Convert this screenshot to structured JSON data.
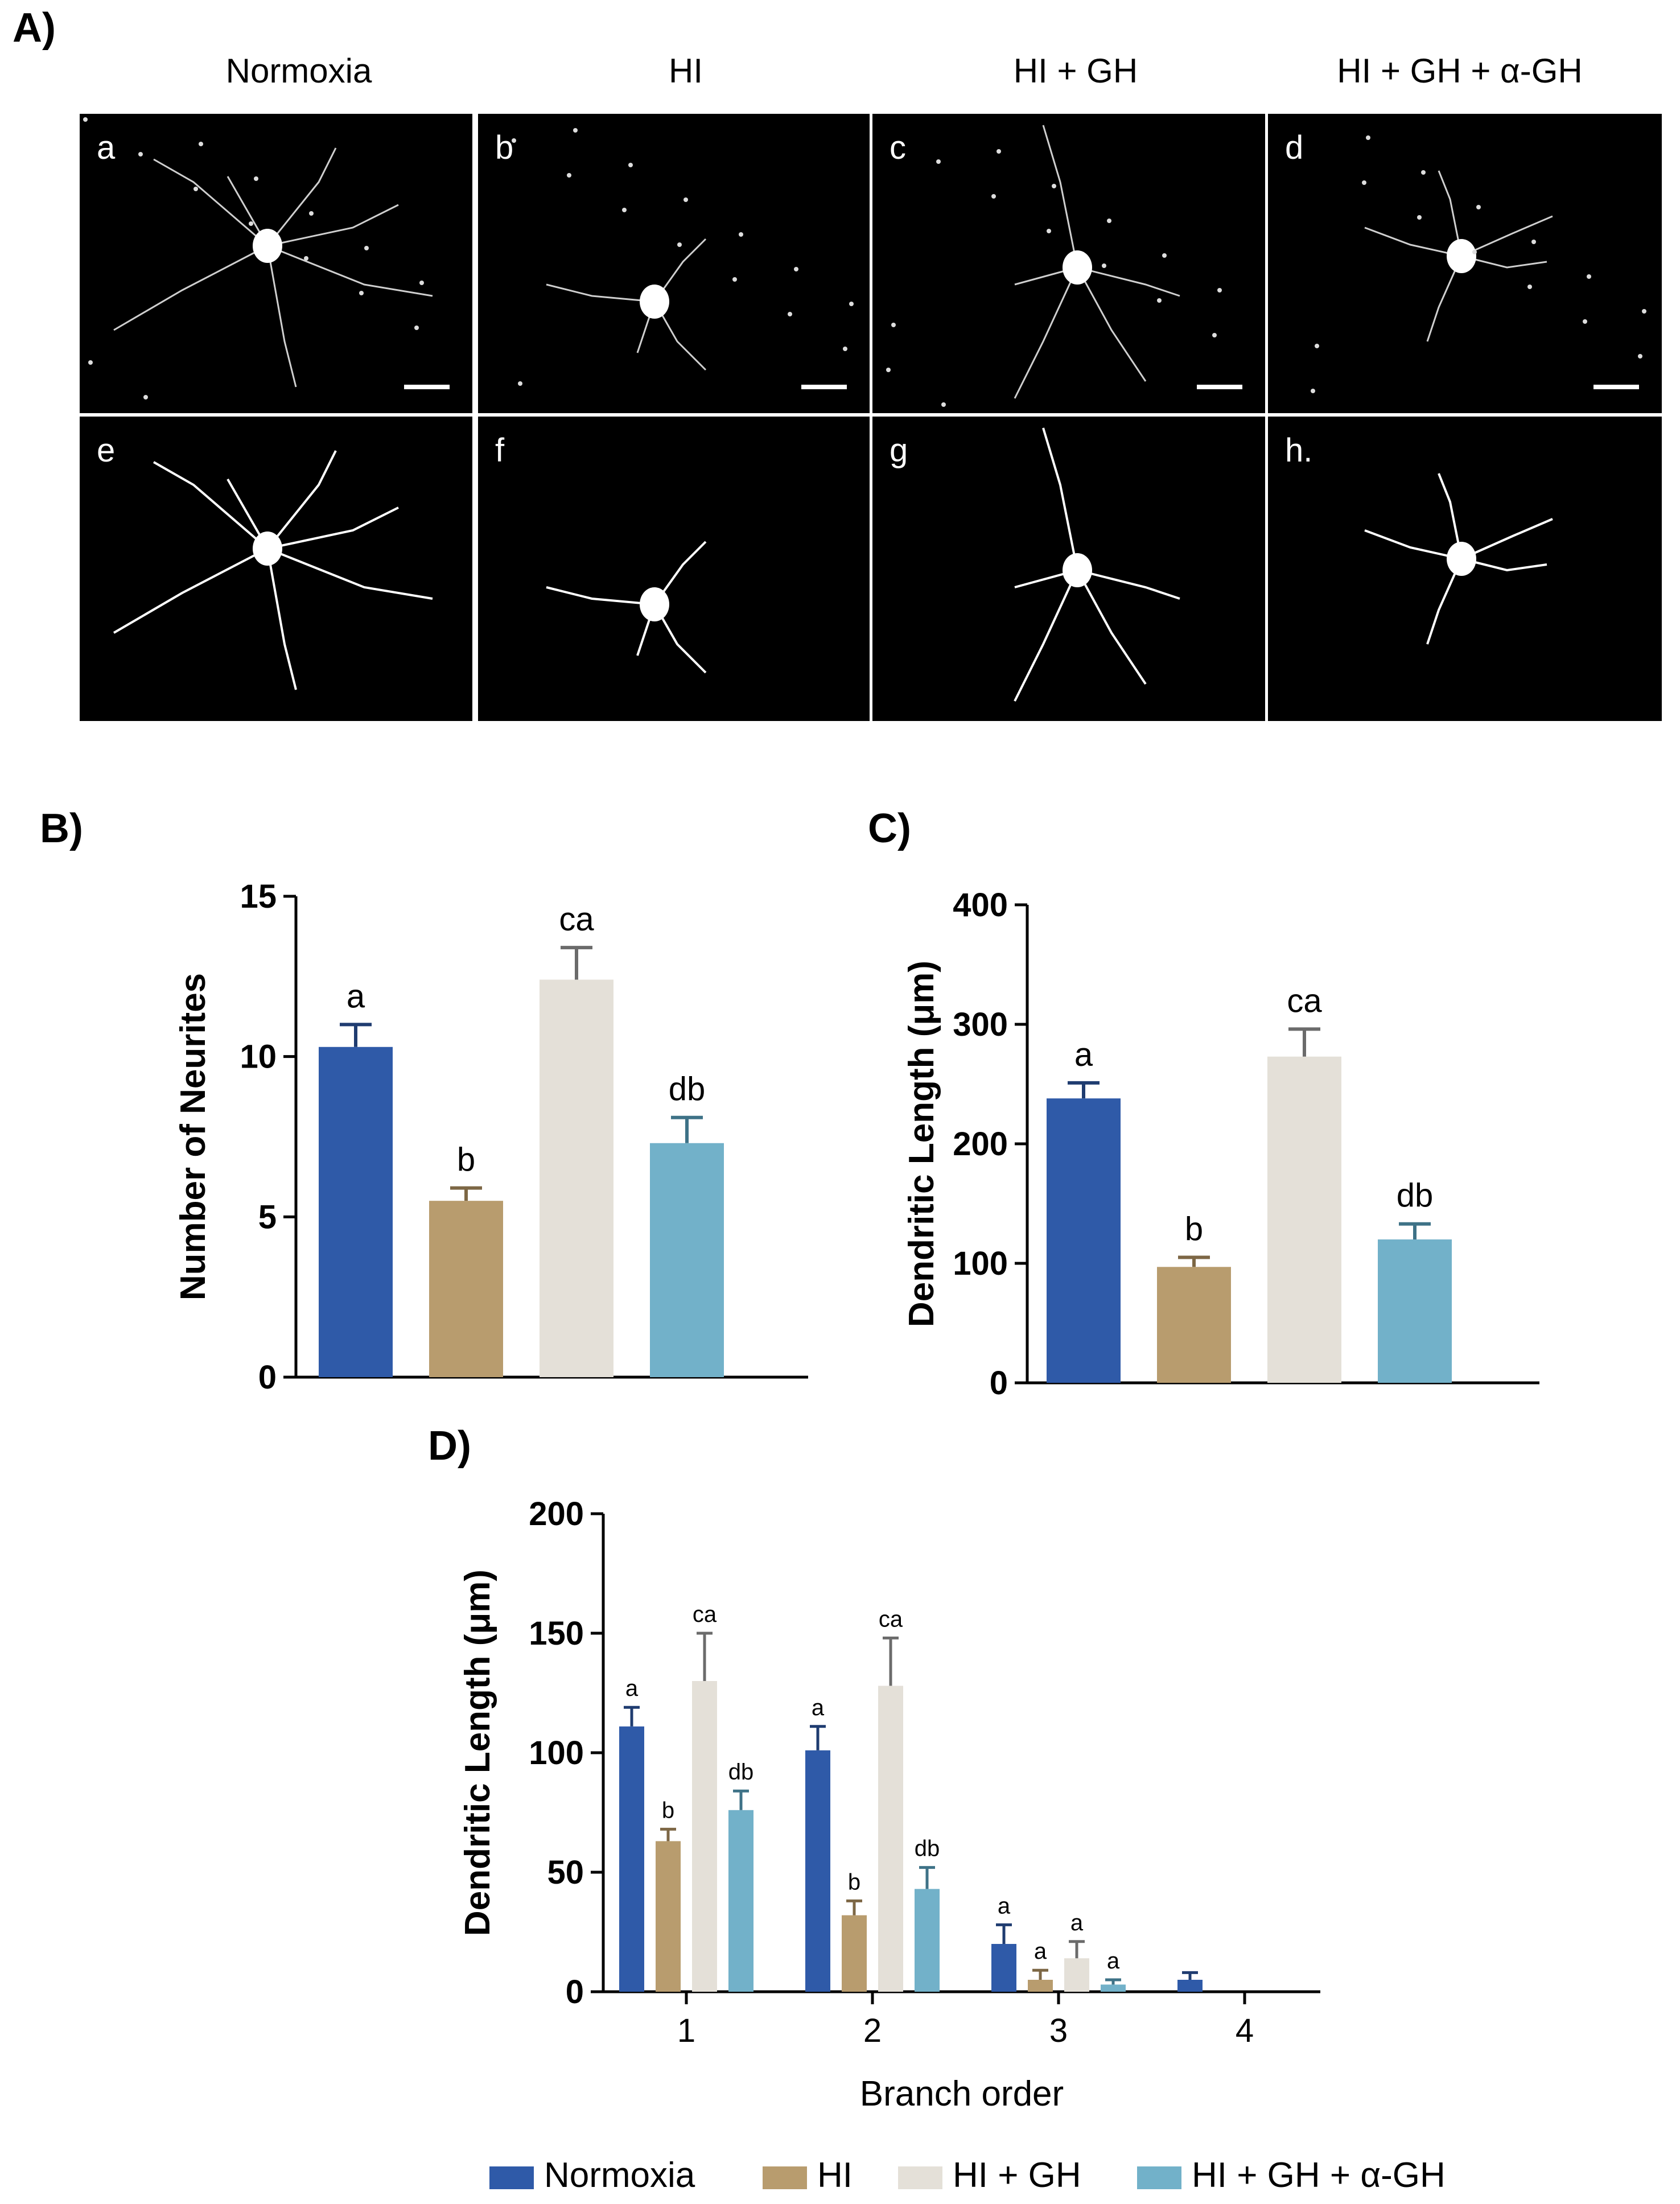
{
  "panel_labels": {
    "A": "A)",
    "B": "B)",
    "C": "C)",
    "D": "D)"
  },
  "micro": {
    "columns": [
      "Normoxia",
      "HI",
      "HI + GH",
      "HI + GH + α-GH"
    ],
    "top_labels": [
      "a",
      "b",
      "c",
      "d"
    ],
    "bottom_labels": [
      "e",
      "f",
      "g",
      "h."
    ]
  },
  "colors": {
    "Normoxia": "#2f5aa8",
    "HI": "#b89c6e",
    "HI + GH": "#e4e0d8",
    "HI + GH + α-GH": "#72b1c9"
  },
  "legend": [
    "Normoxia",
    "HI",
    "HI + GH",
    "HI + GH + α-GH"
  ],
  "chart_data": [
    {
      "id": "B",
      "type": "bar",
      "ylabel": "Number of Neurites",
      "ylim": [
        0,
        15
      ],
      "yticks": [
        0,
        5,
        10,
        15
      ],
      "categories": [
        "Normoxia",
        "HI",
        "HI + GH",
        "HI + GH + α-GH"
      ],
      "values": [
        10.3,
        5.5,
        12.4,
        7.3
      ],
      "errors": [
        0.7,
        0.4,
        1.0,
        0.8
      ],
      "sig_labels": [
        "a",
        "b",
        "ca",
        "db"
      ]
    },
    {
      "id": "C",
      "type": "bar",
      "ylabel": "Dendritic Length (μm)",
      "ylim": [
        0,
        400
      ],
      "yticks": [
        0,
        100,
        200,
        300,
        400
      ],
      "categories": [
        "Normoxia",
        "HI",
        "HI + GH",
        "HI + GH + α-GH"
      ],
      "values": [
        238,
        97,
        273,
        120
      ],
      "errors": [
        13,
        8,
        23,
        13
      ],
      "sig_labels": [
        "a",
        "b",
        "ca",
        "db"
      ]
    },
    {
      "id": "D",
      "type": "bar",
      "xlabel": "Branch order",
      "ylabel": "Dendritic Length (μm)",
      "ylim": [
        0,
        200
      ],
      "yticks": [
        0,
        50,
        100,
        150,
        200
      ],
      "categories": [
        "1",
        "2",
        "3",
        "4"
      ],
      "series": [
        {
          "name": "Normoxia",
          "values": [
            111,
            101,
            20,
            5
          ],
          "errors": [
            8,
            10,
            8,
            3
          ],
          "sig_labels": [
            "a",
            "a",
            "a",
            ""
          ]
        },
        {
          "name": "HI",
          "values": [
            63,
            32,
            5,
            0
          ],
          "errors": [
            5,
            6,
            4,
            0
          ],
          "sig_labels": [
            "b",
            "b",
            "a",
            ""
          ]
        },
        {
          "name": "HI + GH",
          "values": [
            130,
            128,
            14,
            0
          ],
          "errors": [
            20,
            20,
            7,
            0
          ],
          "sig_labels": [
            "ca",
            "ca",
            "a",
            ""
          ]
        },
        {
          "name": "HI + GH + α-GH",
          "values": [
            76,
            43,
            3,
            0
          ],
          "errors": [
            8,
            9,
            2,
            0
          ],
          "sig_labels": [
            "db",
            "db",
            "a",
            ""
          ]
        }
      ]
    }
  ]
}
